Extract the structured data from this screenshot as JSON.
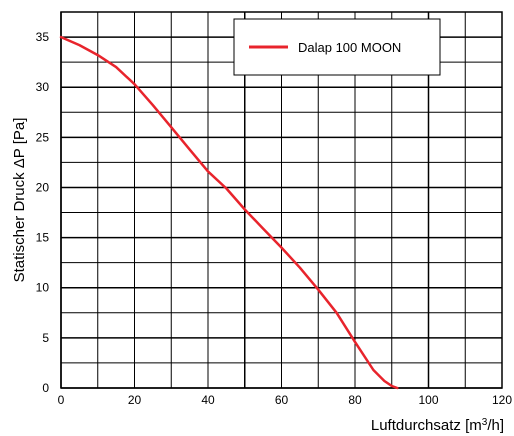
{
  "chart_data": {
    "type": "line",
    "title": "",
    "xlabel": "Luftdurchsatz [m³/h]",
    "ylabel": "Statischer Druck ΔP [Pa]",
    "xlim": [
      0,
      120
    ],
    "ylim": [
      0,
      37.5
    ],
    "x_ticks": [
      0,
      20,
      40,
      60,
      80,
      100,
      120
    ],
    "y_ticks": [
      0,
      5,
      10,
      15,
      20,
      25,
      30,
      35
    ],
    "x_tick_labels": [
      "0",
      "20",
      "40",
      "60",
      "80",
      "100",
      "120"
    ],
    "y_tick_labels": [
      "0",
      "5",
      "10",
      "15",
      "20",
      "25",
      "30",
      "35"
    ],
    "grid": true,
    "legend_position": "top-right",
    "series": [
      {
        "name": "Dalap 100 MOON",
        "color": "#e8242c",
        "x": [
          0,
          5,
          10,
          15,
          20,
          25,
          30,
          35,
          40,
          45,
          50,
          55,
          60,
          65,
          70,
          75,
          80,
          85,
          88,
          90,
          91.5
        ],
        "y": [
          35,
          34.2,
          33.2,
          32,
          30.3,
          28.2,
          26,
          23.8,
          21.6,
          19.9,
          17.8,
          15.9,
          14.0,
          12.0,
          9.8,
          7.5,
          4.6,
          1.8,
          0.7,
          0.2,
          0
        ]
      }
    ]
  }
}
